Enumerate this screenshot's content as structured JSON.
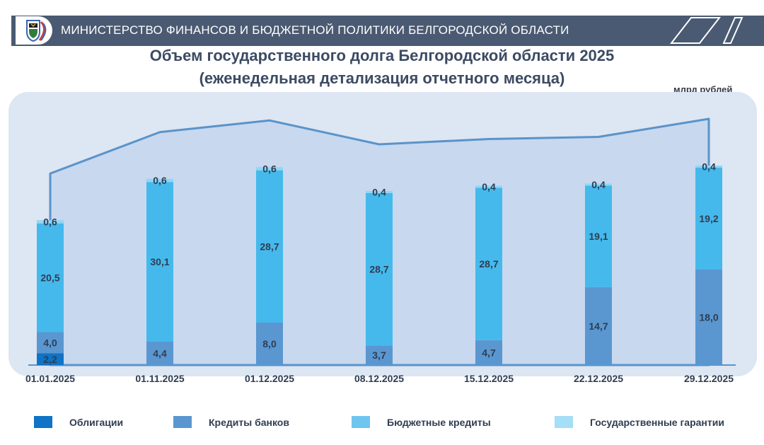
{
  "header": {
    "title": "МИНИСТЕРСТВО ФИНАНСОВ И БЮДЖЕТНОЙ ПОЛИТИКИ БЕЛГОРОДСКОЙ ОБЛАСТИ"
  },
  "colors": {
    "header_bg": "#4a5a72",
    "plot_bg": "#dde6f3",
    "area_fill": "#c7d8ef",
    "line": "#5b93c9",
    "obligations": "#0f73c6",
    "bank_credits": "#5a97d0",
    "budget_credits": "#45b9ec",
    "guarantees": "#8fd7f5"
  },
  "chart_data": {
    "type": "bar",
    "stacked": true,
    "title": "Объем государственного долга Белгородской области 2025",
    "subtitle": "(еженедельная детализация отчетного месяца)",
    "unit": "млрд рублей",
    "categories": [
      "01.01.2025",
      "01.11.2025",
      "01.12.2025",
      "08.12.2025",
      "15.12.2025",
      "22.12.2025",
      "29.12.2025"
    ],
    "series": [
      {
        "name": "Облигации",
        "color": "#0f73c6",
        "values": [
          2.2,
          0,
          0,
          0,
          0,
          0,
          0
        ],
        "labels": [
          "2,2",
          "",
          "",
          "",
          "",
          "",
          ""
        ]
      },
      {
        "name": "Кредиты банков",
        "color": "#5a97d0",
        "values": [
          4.0,
          4.4,
          8.0,
          3.7,
          4.7,
          14.7,
          18.0
        ],
        "labels": [
          "4,0",
          "4,4",
          "8,0",
          "3,7",
          "4,7",
          "14,7",
          "18,0"
        ]
      },
      {
        "name": "Бюджетные кредиты",
        "color": "#45b9ec",
        "values": [
          20.5,
          30.1,
          28.7,
          28.7,
          28.7,
          19.1,
          19.2
        ],
        "labels": [
          "20,5",
          "30,1",
          "28,7",
          "28,7",
          "28,7",
          "19,1",
          "19,2"
        ]
      },
      {
        "name": "Государственные гарантии",
        "color": "#8fd7f5",
        "values": [
          0.6,
          0.6,
          0.6,
          0.4,
          0.4,
          0.4,
          0.4
        ],
        "labels": [
          "0,6",
          "0,6",
          "0,6",
          "0,4",
          "0,4",
          "0,4",
          "0,4"
        ]
      }
    ],
    "ylim": [
      0,
      39
    ],
    "legend": "bottom",
    "grid": false
  },
  "legend": {
    "items": [
      {
        "label": "Облигации",
        "color": "#0f73c6"
      },
      {
        "label": "Кредиты банков",
        "color": "#5a97d0"
      },
      {
        "label": "Бюджетные кредиты",
        "color": "#6fc5ef"
      },
      {
        "label": "Государственные гарантии",
        "color": "#a4def7"
      }
    ]
  }
}
